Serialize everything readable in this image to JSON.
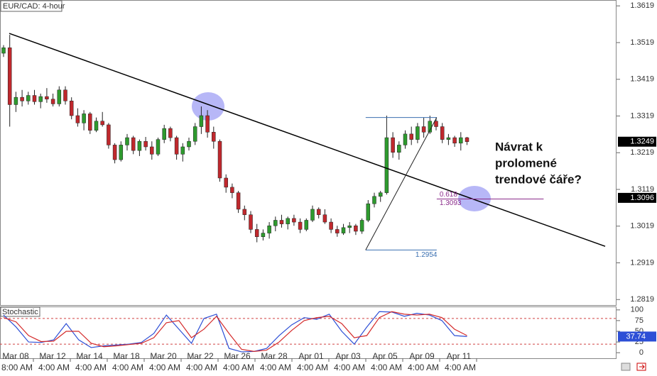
{
  "chart_data": {
    "type": "candlestick",
    "title": "EUR/CAD: 4-hour",
    "ylim": [
      1.2804,
      1.3635
    ],
    "yticks": [
      1.3619,
      1.3519,
      1.3419,
      1.3319,
      1.3219,
      1.3119,
      1.3019,
      1.2919,
      1.2819
    ],
    "up_color": "#2e9a2e",
    "down_color": "#c0282d",
    "candles": [
      [
        1.349,
        1.3512,
        1.348,
        1.3505
      ],
      [
        1.3505,
        1.354,
        1.329,
        1.335
      ],
      [
        1.335,
        1.3385,
        1.333,
        1.337
      ],
      [
        1.337,
        1.339,
        1.3345,
        1.336
      ],
      [
        1.336,
        1.3385,
        1.335,
        1.3375
      ],
      [
        1.3375,
        1.339,
        1.335,
        1.3358
      ],
      [
        1.3358,
        1.338,
        1.334,
        1.3372
      ],
      [
        1.3372,
        1.3395,
        1.3355,
        1.3365
      ],
      [
        1.3365,
        1.338,
        1.3345,
        1.3352
      ],
      [
        1.3352,
        1.34,
        1.3345,
        1.339
      ],
      [
        1.339,
        1.34,
        1.335,
        1.336
      ],
      [
        1.336,
        1.337,
        1.331,
        1.332
      ],
      [
        1.332,
        1.334,
        1.329,
        1.33
      ],
      [
        1.33,
        1.3335,
        1.328,
        1.3325
      ],
      [
        1.3325,
        1.333,
        1.327,
        1.328
      ],
      [
        1.328,
        1.3315,
        1.3275,
        1.3305
      ],
      [
        1.3305,
        1.333,
        1.329,
        1.3295
      ],
      [
        1.3295,
        1.33,
        1.323,
        1.324
      ],
      [
        1.324,
        1.3245,
        1.319,
        1.32
      ],
      [
        1.32,
        1.325,
        1.3195,
        1.324
      ],
      [
        1.324,
        1.327,
        1.3225,
        1.326
      ],
      [
        1.326,
        1.3265,
        1.3215,
        1.3225
      ],
      [
        1.3225,
        1.3255,
        1.321,
        1.325
      ],
      [
        1.325,
        1.3262,
        1.3225,
        1.3235
      ],
      [
        1.3235,
        1.325,
        1.32,
        1.3215
      ],
      [
        1.3215,
        1.326,
        1.321,
        1.3255
      ],
      [
        1.3255,
        1.3295,
        1.3245,
        1.3285
      ],
      [
        1.3285,
        1.329,
        1.325,
        1.326
      ],
      [
        1.326,
        1.3265,
        1.32,
        1.3215
      ],
      [
        1.3215,
        1.3245,
        1.3195,
        1.3235
      ],
      [
        1.3235,
        1.326,
        1.3225,
        1.325
      ],
      [
        1.325,
        1.33,
        1.324,
        1.329
      ],
      [
        1.329,
        1.3345,
        1.327,
        1.332
      ],
      [
        1.332,
        1.3335,
        1.326,
        1.3275
      ],
      [
        1.3275,
        1.329,
        1.323,
        1.325
      ],
      [
        1.325,
        1.3255,
        1.314,
        1.315
      ],
      [
        1.315,
        1.316,
        1.311,
        1.3125
      ],
      [
        1.3125,
        1.3135,
        1.3095,
        1.311
      ],
      [
        1.311,
        1.3115,
        1.3055,
        1.3065
      ],
      [
        1.3065,
        1.3075,
        1.3035,
        1.305
      ],
      [
        1.305,
        1.306,
        1.3,
        1.301
      ],
      [
        1.301,
        1.3025,
        1.2975,
        1.299
      ],
      [
        1.299,
        1.301,
        1.298,
        1.3
      ],
      [
        1.3,
        1.303,
        1.2985,
        1.302
      ],
      [
        1.302,
        1.3045,
        1.3005,
        1.3035
      ],
      [
        1.3035,
        1.305,
        1.3015,
        1.3025
      ],
      [
        1.3025,
        1.3045,
        1.301,
        1.304
      ],
      [
        1.304,
        1.305,
        1.302,
        1.303
      ],
      [
        1.303,
        1.304,
        1.3,
        1.301
      ],
      [
        1.301,
        1.304,
        1.3005,
        1.3035
      ],
      [
        1.3035,
        1.3075,
        1.303,
        1.3065
      ],
      [
        1.3065,
        1.307,
        1.304,
        1.305
      ],
      [
        1.305,
        1.3065,
        1.3025,
        1.303
      ],
      [
        1.303,
        1.304,
        1.3,
        1.301
      ],
      [
        1.301,
        1.302,
        1.299,
        1.3
      ],
      [
        1.3,
        1.3025,
        1.2995,
        1.3015
      ],
      [
        1.3015,
        1.303,
        1.3,
        1.302
      ],
      [
        1.302,
        1.3025,
        1.2995,
        1.3005
      ],
      [
        1.3005,
        1.304,
        1.2998,
        1.3035
      ],
      [
        1.3035,
        1.309,
        1.303,
        1.308
      ],
      [
        1.308,
        1.311,
        1.307,
        1.31
      ],
      [
        1.31,
        1.3115,
        1.3085,
        1.311
      ],
      [
        1.311,
        1.332,
        1.3105,
        1.326
      ],
      [
        1.326,
        1.3275,
        1.3205,
        1.322
      ],
      [
        1.322,
        1.325,
        1.32,
        1.324
      ],
      [
        1.324,
        1.328,
        1.323,
        1.327
      ],
      [
        1.327,
        1.329,
        1.324,
        1.3255
      ],
      [
        1.3255,
        1.33,
        1.3245,
        1.329
      ],
      [
        1.329,
        1.3315,
        1.326,
        1.3275
      ],
      [
        1.3275,
        1.332,
        1.327,
        1.3305
      ],
      [
        1.3305,
        1.3315,
        1.328,
        1.329
      ],
      [
        1.329,
        1.33,
        1.3245,
        1.3255
      ],
      [
        1.3255,
        1.327,
        1.324,
        1.326
      ],
      [
        1.326,
        1.3265,
        1.3235,
        1.3245
      ],
      [
        1.3245,
        1.3275,
        1.3225,
        1.326
      ],
      [
        1.326,
        1.3262,
        1.324,
        1.3249
      ]
    ],
    "trendline": {
      "x": [
        0.92,
        97.36
      ],
      "y": [
        1.3544,
        1.2964
      ],
      "color": "#000000"
    },
    "fib": {
      "x": [
        58.6,
        70.1
      ],
      "low": 1.2954,
      "high": 1.3315,
      "level": 0.618,
      "level_price": 1.3093,
      "level_x": [
        70.1,
        87.4
      ],
      "color": "#3a6fb0",
      "level_color": "#8b2c8b"
    },
    "last_price": 1.3249,
    "marker_price": 1.3096,
    "annotation": [
      "Návrat k",
      "prolomené",
      "trendové čáře?"
    ],
    "dates": [
      "Mar 08",
      "Mar 12",
      "Mar 14",
      "Mar 18",
      "Mar 20",
      "Mar 22",
      "Mar 26",
      "Mar 28",
      "Apr 01",
      "Apr 03",
      "Apr 05",
      "Apr 09",
      "Apr 11"
    ],
    "times": [
      "8:00 AM",
      "4:00 AM",
      "4:00 AM",
      "4:00 AM",
      "4:00 AM",
      "4:00 AM",
      "4:00 AM",
      "4:00 AM",
      "4:00 AM",
      "4:00 AM",
      "4:00 AM",
      "4:00 AM",
      "4:00 AM"
    ],
    "stochastic": {
      "title": "Stochastic",
      "ylim": [
        -13,
        108
      ],
      "yticks": [
        100,
        75,
        50,
        25,
        0
      ],
      "levels": [
        80,
        20
      ],
      "level_color": "#d04040",
      "last_value": 37.74,
      "series": [
        {
          "color": "#2d4fd6",
          "values": [
            88,
            60,
            25,
            24,
            30,
            68,
            30,
            12,
            16,
            18,
            20,
            24,
            45,
            88,
            55,
            22,
            80,
            90,
            10,
            2,
            3,
            10,
            40,
            65,
            82,
            78,
            90,
            50,
            20,
            60,
            96,
            95,
            85,
            92,
            88,
            75,
            40,
            37.74
          ]
        },
        {
          "color": "#d42a2a",
          "values": [
            82,
            72,
            40,
            26,
            27,
            50,
            50,
            22,
            14,
            16,
            19,
            22,
            35,
            70,
            75,
            35,
            55,
            85,
            45,
            8,
            3,
            6,
            25,
            52,
            75,
            82,
            85,
            68,
            35,
            40,
            82,
            96,
            90,
            88,
            90,
            82,
            55,
            40
          ]
        }
      ]
    }
  }
}
